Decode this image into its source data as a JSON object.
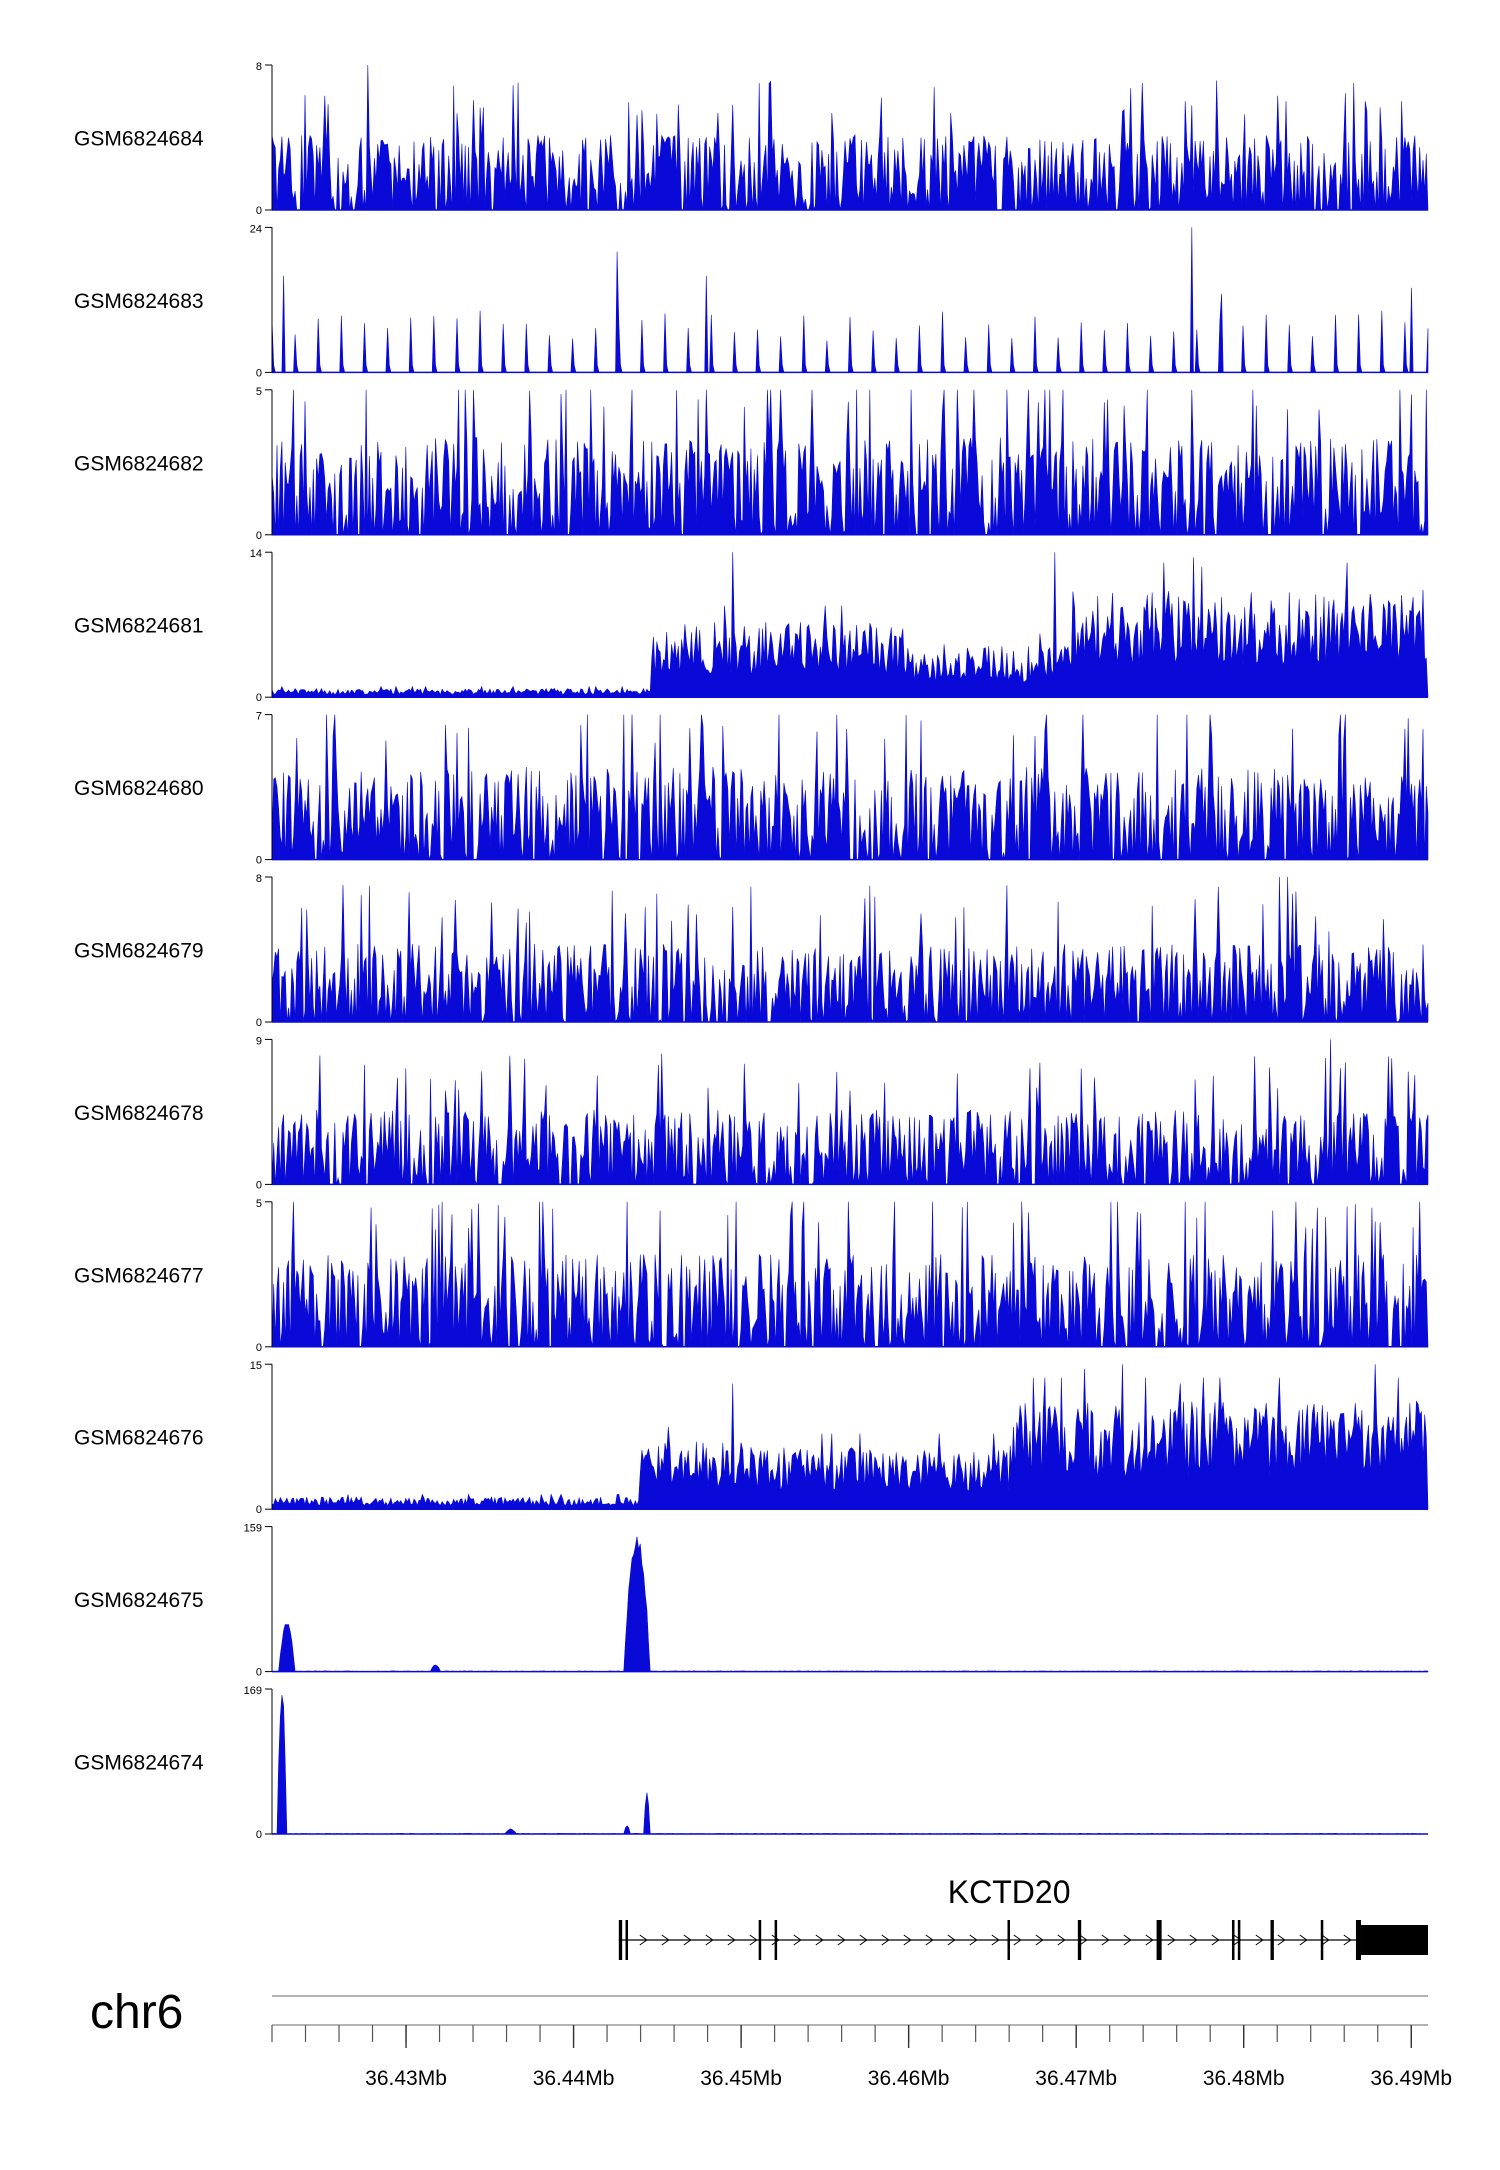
{
  "colors": {
    "track": "#0a0ad8",
    "axis": "#000000",
    "gene": "#000000"
  },
  "chart_data": {
    "type": "area",
    "x_unit": "bp",
    "x_range": [
      36422000,
      36491000
    ],
    "tracks": [
      {
        "label": "GSM6824684",
        "ymax": 8,
        "ymax_label": "8",
        "ymin_label": "0",
        "profile": "noise",
        "level": 2.6,
        "spikes": [
          [
            36427700,
            8
          ],
          [
            36451100,
            7
          ],
          [
            36473900,
            7
          ],
          [
            36482500,
            6
          ],
          [
            36486600,
            7
          ],
          [
            36489400,
            6
          ],
          [
            36444100,
            5.5
          ]
        ]
      },
      {
        "label": "GSM6824683",
        "ymax": 24,
        "ymax_label": "24",
        "ymin_label": "0",
        "profile": "sparse",
        "level": 8,
        "spikes": [
          [
            36442600,
            20
          ],
          [
            36447900,
            16
          ],
          [
            36476900,
            24
          ],
          [
            36422700,
            16
          ],
          [
            36478700,
            13
          ],
          [
            36490000,
            14
          ]
        ]
      },
      {
        "label": "GSM6824682",
        "ymax": 5,
        "ymax_label": "5",
        "ymin_label": "0",
        "profile": "noise",
        "level": 2.1,
        "spikes": [
          [
            36424000,
            4.6
          ],
          [
            36454200,
            5
          ],
          [
            36467100,
            5
          ],
          [
            36490900,
            5
          ]
        ]
      },
      {
        "label": "GSM6824681",
        "ymax": 14,
        "ymax_label": "14",
        "ymin_label": "0",
        "profile": "regions",
        "regions": [
          [
            36422000,
            36444600,
            0.6
          ],
          [
            36444600,
            36460000,
            5.2
          ],
          [
            36460000,
            36463000,
            3.0
          ],
          [
            36463000,
            36469800,
            3.6
          ],
          [
            36469800,
            36491000,
            7.4
          ]
        ],
        "spikes": [
          [
            36449500,
            14
          ],
          [
            36468700,
            14
          ],
          [
            36475200,
            13
          ],
          [
            36477000,
            13.5
          ],
          [
            36486200,
            13
          ]
        ]
      },
      {
        "label": "GSM6824680",
        "ymax": 7,
        "ymax_label": "7",
        "ymin_label": "0",
        "profile": "noise",
        "level": 2.8,
        "spikes": [
          [
            36443000,
            7
          ],
          [
            36447600,
            7
          ],
          [
            36452300,
            7
          ],
          [
            36440400,
            6.5
          ],
          [
            36466300,
            6
          ],
          [
            36478100,
            6
          ],
          [
            36485700,
            6
          ]
        ]
      },
      {
        "label": "GSM6824679",
        "ymax": 8,
        "ymax_label": "8",
        "ymin_label": "0",
        "profile": "noise",
        "level": 2.7,
        "spikes": [
          [
            36482100,
            8
          ],
          [
            36482600,
            8
          ],
          [
            36427300,
            7
          ],
          [
            36443100,
            6
          ],
          [
            36481100,
            6.5
          ],
          [
            36485100,
            5
          ]
        ]
      },
      {
        "label": "GSM6824678",
        "ymax": 9,
        "ymax_label": "9",
        "ymin_label": "0",
        "profile": "noise",
        "level": 2.9,
        "spikes": [
          [
            36485200,
            9
          ],
          [
            36424900,
            8
          ],
          [
            36489800,
            7
          ],
          [
            36467600,
            6
          ],
          [
            36448000,
            6
          ]
        ]
      },
      {
        "label": "GSM6824677",
        "ymax": 5,
        "ymax_label": "5",
        "ymin_label": "0",
        "profile": "noise",
        "level": 2.0,
        "spikes": [
          [
            36432000,
            4.9
          ],
          [
            36459200,
            5
          ],
          [
            36473800,
            4.6
          ],
          [
            36487600,
            4.8
          ],
          [
            36481700,
            4.7
          ]
        ]
      },
      {
        "label": "GSM6824676",
        "ymax": 15,
        "ymax_label": "15",
        "ymin_label": "0",
        "profile": "regions",
        "regions": [
          [
            36422000,
            36443900,
            0.9
          ],
          [
            36443900,
            36451000,
            5.0
          ],
          [
            36451000,
            36466000,
            4.6
          ],
          [
            36466000,
            36491000,
            8.0
          ]
        ],
        "spikes": [
          [
            36470500,
            14.5
          ],
          [
            36472800,
            15
          ],
          [
            36487800,
            15
          ],
          [
            36449500,
            13
          ],
          [
            36476200,
            13
          ]
        ]
      },
      {
        "label": "GSM6824675",
        "ymax": 159,
        "ymax_label": "159",
        "ymin_label": "0",
        "profile": "peaks",
        "level": 0.8,
        "peaks": [
          [
            36422400,
            36423400,
            55
          ],
          [
            36443000,
            36444600,
            159
          ],
          [
            36431500,
            36432100,
            8
          ]
        ]
      },
      {
        "label": "GSM6824674",
        "ymax": 169,
        "ymax_label": "169",
        "ymin_label": "0",
        "profile": "peaks",
        "level": 0.8,
        "peaks": [
          [
            36422300,
            36422900,
            169
          ],
          [
            36444200,
            36444600,
            50
          ],
          [
            36443000,
            36443400,
            10
          ],
          [
            36435900,
            36436600,
            6
          ]
        ]
      }
    ],
    "gene": {
      "name": "KCTD20",
      "strand": "+",
      "start": 36442700,
      "end": 36491000,
      "exons": [
        [
          36442700,
          36442900
        ],
        [
          36443100,
          36443250
        ],
        [
          36451050,
          36451150
        ],
        [
          36452000,
          36452100
        ],
        [
          36465900,
          36466000
        ],
        [
          36470100,
          36470300
        ],
        [
          36474800,
          36475100
        ],
        [
          36479300,
          36479450
        ],
        [
          36479650,
          36479800
        ],
        [
          36481600,
          36481800
        ],
        [
          36484600,
          36484750
        ],
        [
          36486700,
          36487000
        ],
        [
          36487000,
          36491000
        ]
      ]
    },
    "chromosome": "chr6",
    "x_tick_labels": [
      "36.43Mb",
      "36.44Mb",
      "36.45Mb",
      "36.46Mb",
      "36.47Mb",
      "36.48Mb",
      "36.49Mb"
    ],
    "x_tick_values": [
      36430000,
      36440000,
      36450000,
      36460000,
      36470000,
      36480000,
      36490000
    ],
    "minor_tick_step": 2000
  }
}
